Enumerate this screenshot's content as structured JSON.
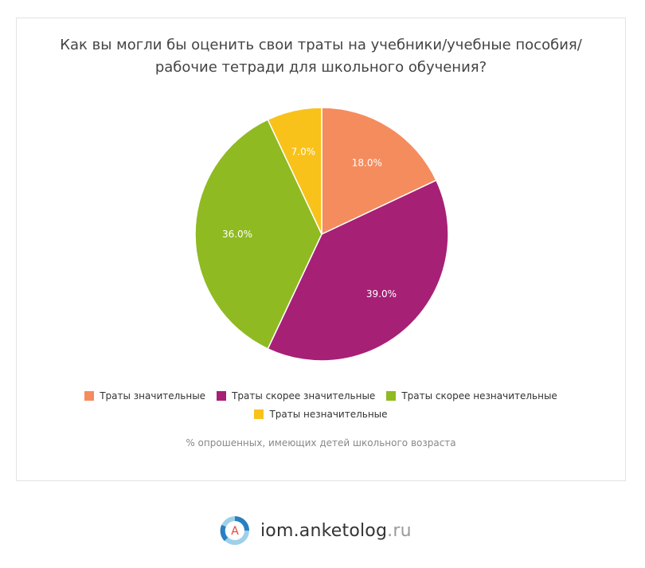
{
  "chart_data": {
    "type": "pie",
    "title_lines": [
      "Как вы могли бы оценить свои траты на учебники/учебные пособия/",
      "рабочие тетради для школьного обучения?"
    ],
    "slices": [
      {
        "label": "Траты значительные",
        "value": 18.0,
        "display": "18.0%",
        "color": "#f58c5e"
      },
      {
        "label": "Траты скорее значительные",
        "value": 39.0,
        "display": "39.0%",
        "color": "#a62076"
      },
      {
        "label": "Траты скорее незначительные",
        "value": 36.0,
        "display": "36.0%",
        "color": "#8fba22"
      },
      {
        "label": "Траты незначительные",
        "value": 7.0,
        "display": "7.0%",
        "color": "#f8c21a"
      }
    ],
    "note": "% опрошенных, имеющих детей школьного возраста",
    "legend_position": "bottom"
  },
  "brand": {
    "logo_letter": "А",
    "name": "iom.anketolog",
    "tld": ".ru",
    "colors": {
      "ring_dark": "#2a7fbf",
      "ring_light": "#9fd0ea",
      "letter": "#e0463a"
    }
  }
}
